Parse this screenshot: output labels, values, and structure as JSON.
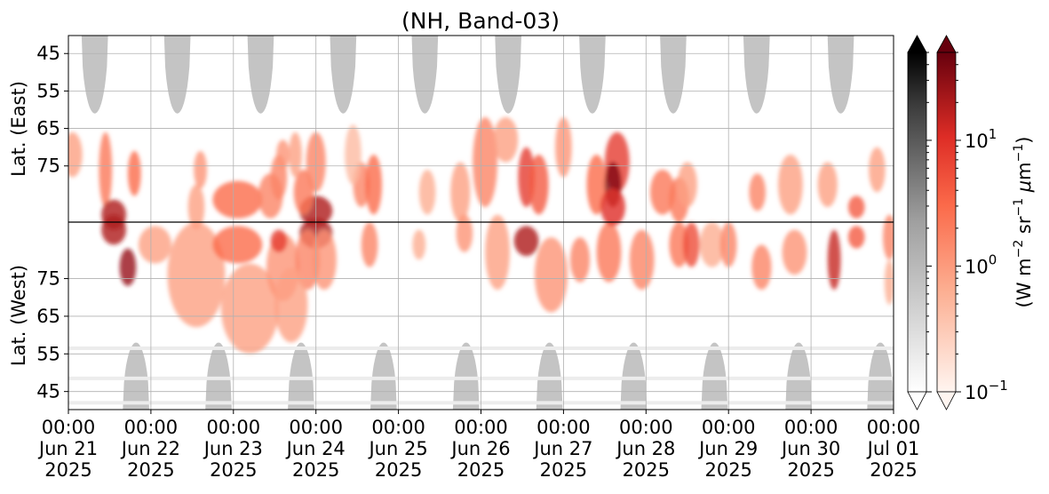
{
  "chart_data": {
    "type": "heatmap",
    "title": "(NH, Band-03)",
    "x": {
      "type": "datetime",
      "range": [
        "2025-06-21 00:00",
        "2025-07-01 00:00"
      ],
      "ticks": [
        {
          "time": "00:00",
          "day": "Jun 21",
          "year": "2025"
        },
        {
          "time": "00:00",
          "day": "Jun 22",
          "year": "2025"
        },
        {
          "time": "00:00",
          "day": "Jun 23",
          "year": "2025"
        },
        {
          "time": "00:00",
          "day": "Jun 24",
          "year": "2025"
        },
        {
          "time": "00:00",
          "day": "Jun 25",
          "year": "2025"
        },
        {
          "time": "00:00",
          "day": "Jun 26",
          "year": "2025"
        },
        {
          "time": "00:00",
          "day": "Jun 27",
          "year": "2025"
        },
        {
          "time": "00:00",
          "day": "Jun 28",
          "year": "2025"
        },
        {
          "time": "00:00",
          "day": "Jun 29",
          "year": "2025"
        },
        {
          "time": "00:00",
          "day": "Jun 30",
          "year": "2025"
        },
        {
          "time": "00:00",
          "day": "Jul 01",
          "year": "2025"
        }
      ]
    },
    "y": {
      "upper_label": "Lat. (East)",
      "lower_label": "Lat. (West)",
      "upper_ticks": [
        "45",
        "55",
        "65",
        "75"
      ],
      "lower_ticks": [
        "75",
        "65",
        "55",
        "45"
      ],
      "range_lat": [
        40,
        90
      ]
    },
    "colorbars": [
      {
        "name": "gray",
        "cmap": "Greys",
        "scale": "log",
        "range": [
          0.1,
          50
        ],
        "extend": "both"
      },
      {
        "name": "red",
        "cmap": "Reds",
        "scale": "log",
        "range": [
          0.1,
          50
        ],
        "extend": "both",
        "tick_labels": [
          {
            "base": "10",
            "exp": "1",
            "value": 10
          },
          {
            "base": "10",
            "exp": "0",
            "value": 1
          },
          {
            "base": "10",
            "exp": "−1",
            "value": 0.1
          }
        ]
      }
    ],
    "colorbar_label": {
      "p1": "(W m",
      "s1": "−2",
      "p2": " sr",
      "s2": "−1",
      "p3": " ",
      "mu": "μ",
      "p4": "m",
      "s3": "−1",
      "p5": ")"
    },
    "grid": true,
    "gray_lobes": {
      "east_centers_day": [
        0.32,
        1.32,
        2.33,
        3.33,
        4.32,
        5.33,
        6.35,
        7.33,
        8.34,
        9.36
      ],
      "west_centers_day": [
        0.82,
        1.82,
        2.82,
        3.82,
        4.82,
        5.83,
        6.85,
        7.83,
        8.85,
        9.84
      ],
      "east_extent_lat": 61,
      "west_extent_lat": 58,
      "halfwidth_day": 0.16
    },
    "red_features": [
      {
        "t": 0.05,
        "lat": 72,
        "side": "east",
        "dt": 0.12,
        "dlat": 6,
        "v": 0.35
      },
      {
        "t": 0.45,
        "lat": 76,
        "side": "east",
        "dt": 0.08,
        "dlat": 10,
        "v": 0.5
      },
      {
        "t": 0.55,
        "lat": 88,
        "side": "both",
        "dt": 0.15,
        "dlat": 4,
        "v": 0.85
      },
      {
        "t": 0.72,
        "lat": 78,
        "side": "west",
        "dt": 0.1,
        "dlat": 5,
        "v": 0.9
      },
      {
        "t": 0.8,
        "lat": 77,
        "side": "east",
        "dt": 0.08,
        "dlat": 6,
        "v": 0.55
      },
      {
        "t": 1.05,
        "lat": 84,
        "side": "west",
        "dt": 0.2,
        "dlat": 5,
        "v": 0.35
      },
      {
        "t": 1.55,
        "lat": 76,
        "side": "west",
        "dt": 0.35,
        "dlat": 14,
        "v": 0.35
      },
      {
        "t": 1.55,
        "lat": 86,
        "side": "east",
        "dt": 0.1,
        "dlat": 6,
        "v": 0.35
      },
      {
        "t": 1.6,
        "lat": 76,
        "side": "east",
        "dt": 0.08,
        "dlat": 5,
        "v": 0.4
      },
      {
        "t": 2.05,
        "lat": 84,
        "side": "both",
        "dt": 0.3,
        "dlat": 5,
        "v": 0.55
      },
      {
        "t": 2.2,
        "lat": 67,
        "side": "west",
        "dt": 0.35,
        "dlat": 12,
        "v": 0.35
      },
      {
        "t": 2.45,
        "lat": 83,
        "side": "east",
        "dt": 0.15,
        "dlat": 6,
        "v": 0.45
      },
      {
        "t": 2.55,
        "lat": 78,
        "side": "east",
        "dt": 0.1,
        "dlat": 6,
        "v": 0.45
      },
      {
        "t": 2.6,
        "lat": 72,
        "side": "east",
        "dt": 0.08,
        "dlat": 4,
        "v": 0.4
      },
      {
        "t": 2.6,
        "lat": 78,
        "side": "west",
        "dt": 0.2,
        "dlat": 9,
        "v": 0.4
      },
      {
        "t": 2.55,
        "lat": 85,
        "side": "west",
        "dt": 0.1,
        "dlat": 3,
        "v": 0.7
      },
      {
        "t": 3.0,
        "lat": 87,
        "side": "both",
        "dt": 0.2,
        "dlat": 4,
        "v": 0.85
      },
      {
        "t": 2.85,
        "lat": 82,
        "side": "east",
        "dt": 0.12,
        "dlat": 6,
        "v": 0.5
      },
      {
        "t": 2.9,
        "lat": 80,
        "side": "west",
        "dt": 0.15,
        "dlat": 8,
        "v": 0.45
      },
      {
        "t": 2.7,
        "lat": 68,
        "side": "west",
        "dt": 0.2,
        "dlat": 10,
        "v": 0.35
      },
      {
        "t": 2.75,
        "lat": 72,
        "side": "east",
        "dt": 0.08,
        "dlat": 6,
        "v": 0.35
      },
      {
        "t": 3.0,
        "lat": 74,
        "side": "east",
        "dt": 0.12,
        "dlat": 8,
        "v": 0.45
      },
      {
        "t": 3.1,
        "lat": 80,
        "side": "west",
        "dt": 0.15,
        "dlat": 8,
        "v": 0.4
      },
      {
        "t": 3.55,
        "lat": 80,
        "side": "east",
        "dt": 0.1,
        "dlat": 6,
        "v": 0.45
      },
      {
        "t": 3.7,
        "lat": 80,
        "side": "east",
        "dt": 0.1,
        "dlat": 8,
        "v": 0.55
      },
      {
        "t": 3.65,
        "lat": 84,
        "side": "west",
        "dt": 0.1,
        "dlat": 6,
        "v": 0.45
      },
      {
        "t": 3.45,
        "lat": 72,
        "side": "east",
        "dt": 0.1,
        "dlat": 8,
        "v": 0.25
      },
      {
        "t": 4.35,
        "lat": 82,
        "side": "east",
        "dt": 0.1,
        "dlat": 6,
        "v": 0.3
      },
      {
        "t": 4.25,
        "lat": 84,
        "side": "west",
        "dt": 0.08,
        "dlat": 4,
        "v": 0.3
      },
      {
        "t": 4.75,
        "lat": 82,
        "side": "east",
        "dt": 0.12,
        "dlat": 8,
        "v": 0.35
      },
      {
        "t": 4.8,
        "lat": 87,
        "side": "west",
        "dt": 0.1,
        "dlat": 5,
        "v": 0.4
      },
      {
        "t": 5.05,
        "lat": 74,
        "side": "east",
        "dt": 0.15,
        "dlat": 12,
        "v": 0.45
      },
      {
        "t": 5.3,
        "lat": 68,
        "side": "east",
        "dt": 0.15,
        "dlat": 6,
        "v": 0.35
      },
      {
        "t": 5.2,
        "lat": 82,
        "side": "west",
        "dt": 0.15,
        "dlat": 10,
        "v": 0.35
      },
      {
        "t": 5.55,
        "lat": 78,
        "side": "east",
        "dt": 0.1,
        "dlat": 8,
        "v": 0.7
      },
      {
        "t": 5.55,
        "lat": 85,
        "side": "west",
        "dt": 0.15,
        "dlat": 4,
        "v": 0.85
      },
      {
        "t": 5.7,
        "lat": 80,
        "side": "east",
        "dt": 0.12,
        "dlat": 8,
        "v": 0.6
      },
      {
        "t": 5.85,
        "lat": 76,
        "side": "west",
        "dt": 0.2,
        "dlat": 10,
        "v": 0.4
      },
      {
        "t": 6.0,
        "lat": 70,
        "side": "east",
        "dt": 0.1,
        "dlat": 8,
        "v": 0.4
      },
      {
        "t": 6.2,
        "lat": 80,
        "side": "west",
        "dt": 0.12,
        "dlat": 6,
        "v": 0.45
      },
      {
        "t": 6.4,
        "lat": 80,
        "side": "east",
        "dt": 0.12,
        "dlat": 8,
        "v": 0.55
      },
      {
        "t": 6.55,
        "lat": 82,
        "side": "west",
        "dt": 0.15,
        "dlat": 8,
        "v": 0.5
      },
      {
        "t": 6.65,
        "lat": 74,
        "side": "east",
        "dt": 0.15,
        "dlat": 8,
        "v": 0.7
      },
      {
        "t": 6.6,
        "lat": 80,
        "side": "east",
        "dt": 0.1,
        "dlat": 6,
        "v": 0.95
      },
      {
        "t": 6.6,
        "lat": 86,
        "side": "east",
        "dt": 0.15,
        "dlat": 5,
        "v": 0.75
      },
      {
        "t": 6.95,
        "lat": 80,
        "side": "west",
        "dt": 0.15,
        "dlat": 8,
        "v": 0.45
      },
      {
        "t": 7.2,
        "lat": 82,
        "side": "east",
        "dt": 0.15,
        "dlat": 6,
        "v": 0.5
      },
      {
        "t": 7.4,
        "lat": 84,
        "side": "both",
        "dt": 0.12,
        "dlat": 6,
        "v": 0.5
      },
      {
        "t": 7.55,
        "lat": 84,
        "side": "west",
        "dt": 0.1,
        "dlat": 6,
        "v": 0.65
      },
      {
        "t": 7.5,
        "lat": 80,
        "side": "east",
        "dt": 0.12,
        "dlat": 6,
        "v": 0.35
      },
      {
        "t": 7.8,
        "lat": 84,
        "side": "west",
        "dt": 0.15,
        "dlat": 6,
        "v": 0.3
      },
      {
        "t": 8.0,
        "lat": 84,
        "side": "west",
        "dt": 0.1,
        "dlat": 6,
        "v": 0.45
      },
      {
        "t": 8.35,
        "lat": 82,
        "side": "east",
        "dt": 0.1,
        "dlat": 5,
        "v": 0.45
      },
      {
        "t": 8.4,
        "lat": 78,
        "side": "west",
        "dt": 0.12,
        "dlat": 6,
        "v": 0.45
      },
      {
        "t": 8.75,
        "lat": 80,
        "side": "east",
        "dt": 0.15,
        "dlat": 8,
        "v": 0.35
      },
      {
        "t": 8.8,
        "lat": 82,
        "side": "west",
        "dt": 0.15,
        "dlat": 6,
        "v": 0.4
      },
      {
        "t": 9.2,
        "lat": 80,
        "side": "east",
        "dt": 0.12,
        "dlat": 6,
        "v": 0.35
      },
      {
        "t": 9.28,
        "lat": 80,
        "side": "west",
        "dt": 0.08,
        "dlat": 8,
        "v": 0.8
      },
      {
        "t": 9.55,
        "lat": 86,
        "side": "both",
        "dt": 0.1,
        "dlat": 3,
        "v": 0.6
      },
      {
        "t": 9.8,
        "lat": 76,
        "side": "east",
        "dt": 0.1,
        "dlat": 6,
        "v": 0.35
      },
      {
        "t": 9.95,
        "lat": 86,
        "side": "west",
        "dt": 0.08,
        "dlat": 6,
        "v": 0.45
      },
      {
        "t": 9.95,
        "lat": 74,
        "side": "west",
        "dt": 0.06,
        "dlat": 6,
        "v": 0.3
      }
    ]
  }
}
